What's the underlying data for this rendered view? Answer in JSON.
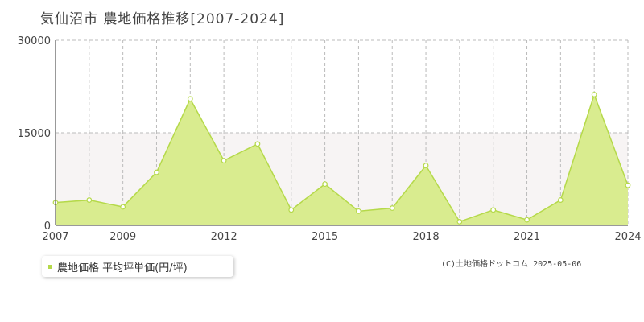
{
  "title": "気仙沼市 農地価格推移[2007-2024]",
  "copyright": "(C)土地価格ドットコム 2025-05-06",
  "legend": {
    "label": "農地価格 平均坪単価(円/坪)",
    "color": "#b5d94a"
  },
  "colors": {
    "fill": "#d9ec8f",
    "stroke": "#b5d94a",
    "band": "#f7f4f4",
    "grid": "#bbbbbb"
  },
  "chart_data": {
    "type": "area",
    "title": "気仙沼市 農地価格推移[2007-2024]",
    "x": [
      2007,
      2008,
      2009,
      2010,
      2011,
      2012,
      2013,
      2014,
      2015,
      2016,
      2017,
      2018,
      2019,
      2020,
      2021,
      2022,
      2023,
      2024
    ],
    "series": [
      {
        "name": "農地価格 平均坪単価(円/坪)",
        "values": [
          3700,
          4100,
          3000,
          8600,
          20500,
          10500,
          13200,
          2500,
          6700,
          2300,
          2800,
          9700,
          600,
          2500,
          900,
          4100,
          21200,
          6500
        ]
      }
    ],
    "xlim": [
      2007,
      2024
    ],
    "ylim": [
      0,
      30000
    ],
    "yticks": [
      0,
      15000,
      30000
    ],
    "xticks": [
      2007,
      2009,
      2012,
      2015,
      2018,
      2021,
      2024
    ],
    "grid": true,
    "legend_position": "bottom-left"
  }
}
